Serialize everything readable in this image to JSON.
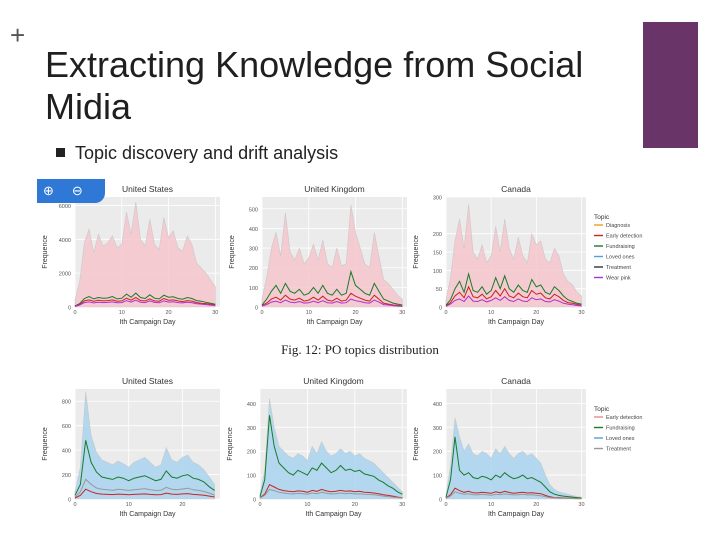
{
  "slide": {
    "plus": "+",
    "title": "Extracting Knowledge from Social Midia",
    "bullet": "Topic discovery and drift analysis",
    "caption": "Fig. 12: PO topics distribution",
    "accent_color": "#693468"
  },
  "zoom": {
    "in_icon": "zoom-in-icon",
    "out_icon": "zoom-out-icon"
  },
  "chart_data": [
    {
      "type": "area",
      "title": "United States",
      "xlabel": "Ith Campaign Day",
      "ylabel": "Frequence",
      "xticks": [
        "0",
        "10",
        "20",
        "30"
      ],
      "yticks": [
        "0",
        "2000",
        "4000",
        "6000"
      ],
      "ylim": [
        0,
        6500
      ],
      "xlim": [
        0,
        31
      ],
      "grid": true,
      "series": [
        {
          "name": "Loved ones",
          "color": "#f4c6cc",
          "fill": true,
          "values": [
            400,
            1500,
            3800,
            4600,
            3200,
            4300,
            3600,
            3800,
            4200,
            3500,
            3700,
            5600,
            4300,
            6200,
            4000,
            3600,
            5200,
            3700,
            3400,
            5300,
            4100,
            4500,
            3500,
            3300,
            4200,
            3700,
            2600,
            2300,
            2000,
            1600,
            1200
          ]
        },
        {
          "name": "Fundraising",
          "color": "#1a7a2a",
          "values": [
            60,
            200,
            500,
            620,
            480,
            560,
            520,
            530,
            620,
            480,
            520,
            760,
            580,
            820,
            560,
            500,
            720,
            520,
            480,
            700,
            580,
            600,
            500,
            460,
            560,
            500,
            380,
            340,
            280,
            220,
            160
          ]
        },
        {
          "name": "Early detection",
          "color": "#cc2222",
          "values": [
            40,
            150,
            360,
            420,
            340,
            400,
            360,
            380,
            420,
            340,
            360,
            520,
            400,
            560,
            380,
            360,
            480,
            360,
            340,
            500,
            400,
            420,
            360,
            320,
            380,
            350,
            260,
            220,
            200,
            160,
            120
          ]
        },
        {
          "name": "Wear pink",
          "color": "#b030d0",
          "values": [
            30,
            120,
            260,
            300,
            240,
            280,
            260,
            270,
            300,
            250,
            260,
            380,
            290,
            400,
            280,
            260,
            360,
            270,
            250,
            360,
            290,
            310,
            260,
            240,
            280,
            250,
            190,
            170,
            140,
            110,
            90
          ]
        }
      ]
    },
    {
      "type": "area",
      "title": "United Kingdom",
      "xlabel": "Ith Campaign Day",
      "ylabel": "Frequence",
      "xticks": [
        "0",
        "10",
        "20",
        "30"
      ],
      "yticks": [
        "0",
        "100",
        "200",
        "300",
        "400",
        "500"
      ],
      "ylim": [
        0,
        560
      ],
      "xlim": [
        0,
        31
      ],
      "grid": true,
      "series": [
        {
          "name": "Loved ones",
          "color": "#f4c6cc",
          "fill": true,
          "values": [
            40,
            150,
            300,
            380,
            260,
            480,
            280,
            240,
            300,
            220,
            250,
            320,
            240,
            340,
            220,
            200,
            300,
            210,
            220,
            520,
            380,
            300,
            220,
            200,
            380,
            260,
            140,
            120,
            90,
            60,
            40
          ]
        },
        {
          "name": "Fundraising",
          "color": "#1a7a2a",
          "values": [
            10,
            40,
            80,
            110,
            70,
            120,
            80,
            70,
            90,
            60,
            70,
            100,
            70,
            110,
            70,
            60,
            90,
            60,
            70,
            180,
            110,
            90,
            70,
            60,
            120,
            80,
            40,
            30,
            20,
            15,
            10
          ]
        },
        {
          "name": "Early detection",
          "color": "#cc2222",
          "values": [
            8,
            20,
            40,
            50,
            35,
            60,
            40,
            35,
            45,
            30,
            35,
            50,
            35,
            55,
            35,
            30,
            45,
            30,
            35,
            70,
            55,
            45,
            35,
            30,
            60,
            40,
            20,
            15,
            10,
            8,
            5
          ]
        },
        {
          "name": "Wear pink",
          "color": "#b030d0",
          "values": [
            5,
            12,
            25,
            30,
            22,
            35,
            25,
            22,
            28,
            20,
            22,
            30,
            22,
            32,
            22,
            20,
            28,
            20,
            22,
            40,
            32,
            28,
            22,
            20,
            35,
            25,
            12,
            10,
            7,
            5,
            3
          ]
        }
      ]
    },
    {
      "type": "area",
      "title": "Canada",
      "xlabel": "Ith Campaign Day",
      "ylabel": "Frequence",
      "xticks": [
        "0",
        "10",
        "20",
        "30"
      ],
      "yticks": [
        "0",
        "50",
        "100",
        "150",
        "200",
        "300"
      ],
      "ylim": [
        0,
        300
      ],
      "xlim": [
        0,
        31
      ],
      "grid": true,
      "legend": {
        "title": "Topic",
        "position": "right",
        "items": [
          {
            "label": "Diagnosis",
            "color": "#e6a020"
          },
          {
            "label": "Early detection",
            "color": "#cc2222"
          },
          {
            "label": "Fundraising",
            "color": "#1a7a2a"
          },
          {
            "label": "Loved ones",
            "color": "#4aa3df"
          },
          {
            "label": "Treatment",
            "color": "#333333"
          },
          {
            "label": "Wear pink",
            "color": "#b030d0"
          }
        ]
      },
      "series": [
        {
          "name": "Loved ones",
          "color": "#f4c6cc",
          "fill": true,
          "values": [
            20,
            80,
            180,
            240,
            160,
            280,
            150,
            130,
            170,
            120,
            140,
            220,
            150,
            240,
            160,
            130,
            190,
            140,
            120,
            200,
            170,
            180,
            130,
            120,
            160,
            140,
            90,
            70,
            60,
            40,
            30
          ]
        },
        {
          "name": "Fundraising",
          "color": "#1a7a2a",
          "values": [
            5,
            20,
            50,
            70,
            40,
            90,
            45,
            40,
            55,
            35,
            45,
            80,
            50,
            85,
            50,
            40,
            60,
            45,
            40,
            75,
            55,
            60,
            40,
            35,
            55,
            45,
            30,
            20,
            15,
            10,
            8
          ]
        },
        {
          "name": "Early detection",
          "color": "#cc2222",
          "values": [
            3,
            12,
            30,
            40,
            25,
            55,
            28,
            25,
            35,
            22,
            28,
            45,
            30,
            50,
            30,
            25,
            38,
            28,
            25,
            45,
            35,
            38,
            25,
            22,
            35,
            28,
            18,
            12,
            10,
            7,
            5
          ]
        },
        {
          "name": "Wear pink",
          "color": "#b030d0",
          "values": [
            2,
            8,
            18,
            22,
            15,
            30,
            16,
            15,
            20,
            14,
            18,
            25,
            18,
            28,
            18,
            15,
            22,
            16,
            15,
            25,
            20,
            22,
            15,
            14,
            20,
            16,
            10,
            8,
            6,
            4,
            3
          ]
        }
      ]
    },
    {
      "type": "area",
      "title": "United States",
      "xlabel": "Ith Campaign Day",
      "ylabel": "Frequence",
      "xticks": [
        "0",
        "10",
        "20"
      ],
      "yticks": [
        "0",
        "200",
        "400",
        "600",
        "800"
      ],
      "ylim": [
        0,
        900
      ],
      "xlim": [
        0,
        27
      ],
      "grid": true,
      "series": [
        {
          "name": "Loved ones",
          "color": "#a8d4ee",
          "fill": true,
          "values": [
            60,
            260,
            880,
            520,
            380,
            320,
            300,
            280,
            310,
            290,
            260,
            300,
            320,
            340,
            300,
            260,
            280,
            420,
            320,
            300,
            340,
            360,
            300,
            280,
            240,
            180,
            120
          ]
        },
        {
          "name": "Fundraising",
          "color": "#1a7a2a",
          "values": [
            30,
            120,
            480,
            300,
            220,
            180,
            170,
            160,
            180,
            170,
            150,
            170,
            180,
            190,
            170,
            150,
            160,
            230,
            180,
            170,
            190,
            200,
            170,
            160,
            140,
            100,
            70
          ]
        },
        {
          "name": "Treatment",
          "color": "#999999",
          "values": [
            15,
            60,
            160,
            120,
            90,
            80,
            75,
            70,
            80,
            75,
            70,
            75,
            80,
            85,
            75,
            70,
            72,
            95,
            80,
            75,
            82,
            88,
            75,
            70,
            62,
            48,
            32
          ]
        },
        {
          "name": "Early detection",
          "color": "#cc2222",
          "values": [
            8,
            30,
            80,
            60,
            45,
            40,
            38,
            36,
            40,
            38,
            35,
            38,
            40,
            42,
            38,
            35,
            36,
            48,
            40,
            38,
            42,
            44,
            38,
            35,
            30,
            24,
            16
          ]
        }
      ]
    },
    {
      "type": "area",
      "title": "United Kingdom",
      "xlabel": "Ith Campaign Day",
      "ylabel": "Frequence",
      "xticks": [
        "0",
        "10",
        "20",
        "30"
      ],
      "yticks": [
        "0",
        "100",
        "200",
        "300",
        "400"
      ],
      "ylim": [
        0,
        460
      ],
      "xlim": [
        0,
        31
      ],
      "grid": true,
      "series": [
        {
          "name": "Loved ones",
          "color": "#a8d4ee",
          "fill": true,
          "values": [
            20,
            120,
            420,
            300,
            220,
            200,
            180,
            170,
            190,
            180,
            160,
            220,
            190,
            240,
            200,
            180,
            190,
            210,
            190,
            200,
            180,
            190,
            170,
            160,
            150,
            130,
            110,
            90,
            70,
            50,
            30
          ]
        },
        {
          "name": "Fundraising",
          "color": "#1a7a2a",
          "values": [
            10,
            80,
            350,
            220,
            150,
            130,
            110,
            100,
            120,
            110,
            100,
            130,
            120,
            150,
            130,
            110,
            120,
            140,
            120,
            125,
            115,
            120,
            105,
            100,
            95,
            80,
            70,
            55,
            45,
            30,
            20
          ]
        },
        {
          "name": "Early detection",
          "color": "#cc2222",
          "values": [
            5,
            20,
            60,
            50,
            40,
            35,
            32,
            30,
            34,
            32,
            28,
            36,
            32,
            40,
            34,
            30,
            32,
            36,
            32,
            34,
            30,
            32,
            28,
            27,
            25,
            22,
            18,
            15,
            12,
            8,
            5
          ]
        },
        {
          "name": "Treatment",
          "color": "#999999",
          "values": [
            4,
            15,
            40,
            35,
            28,
            25,
            22,
            21,
            24,
            22,
            20,
            25,
            22,
            28,
            24,
            21,
            22,
            25,
            22,
            24,
            21,
            22,
            20,
            19,
            18,
            15,
            12,
            10,
            8,
            6,
            4
          ]
        }
      ]
    },
    {
      "type": "area",
      "title": "Canada",
      "xlabel": "Ith Campaign Day",
      "ylabel": "Frequence",
      "xticks": [
        "0",
        "10",
        "20",
        "30"
      ],
      "yticks": [
        "0",
        "100",
        "200",
        "300",
        "400"
      ],
      "ylim": [
        0,
        460
      ],
      "xlim": [
        0,
        31
      ],
      "grid": true,
      "legend": {
        "title": "Topic",
        "position": "right",
        "items": [
          {
            "label": "Early detection",
            "color": "#e68a8a"
          },
          {
            "label": "Fundraising",
            "color": "#1a7a2a"
          },
          {
            "label": "Loved ones",
            "color": "#4aa3df"
          },
          {
            "label": "Treatment",
            "color": "#999999"
          }
        ]
      },
      "series": [
        {
          "name": "Loved ones",
          "color": "#a8d4ee",
          "fill": true,
          "values": [
            15,
            140,
            340,
            260,
            200,
            230,
            190,
            180,
            200,
            190,
            170,
            210,
            190,
            220,
            190,
            170,
            190,
            200,
            180,
            190,
            170,
            150,
            100,
            60,
            40,
            30,
            25,
            20,
            15,
            10,
            8
          ]
        },
        {
          "name": "Fundraising",
          "color": "#1a7a2a",
          "values": [
            8,
            80,
            260,
            120,
            100,
            110,
            90,
            85,
            95,
            90,
            80,
            100,
            90,
            110,
            95,
            85,
            90,
            100,
            85,
            90,
            80,
            70,
            50,
            30,
            20,
            15,
            12,
            10,
            8,
            6,
            4
          ]
        },
        {
          "name": "Early detection",
          "color": "#cc2222",
          "values": [
            4,
            18,
            45,
            35,
            28,
            32,
            26,
            25,
            28,
            26,
            24,
            30,
            26,
            32,
            27,
            24,
            26,
            28,
            25,
            26,
            24,
            22,
            15,
            9,
            6,
            5,
            4,
            3,
            3,
            2,
            2
          ]
        },
        {
          "name": "Treatment",
          "color": "#999999",
          "values": [
            3,
            12,
            30,
            24,
            20,
            22,
            18,
            17,
            20,
            18,
            16,
            20,
            18,
            22,
            19,
            17,
            18,
            20,
            17,
            18,
            16,
            14,
            10,
            6,
            4,
            3,
            3,
            2,
            2,
            1,
            1
          ]
        }
      ]
    }
  ]
}
